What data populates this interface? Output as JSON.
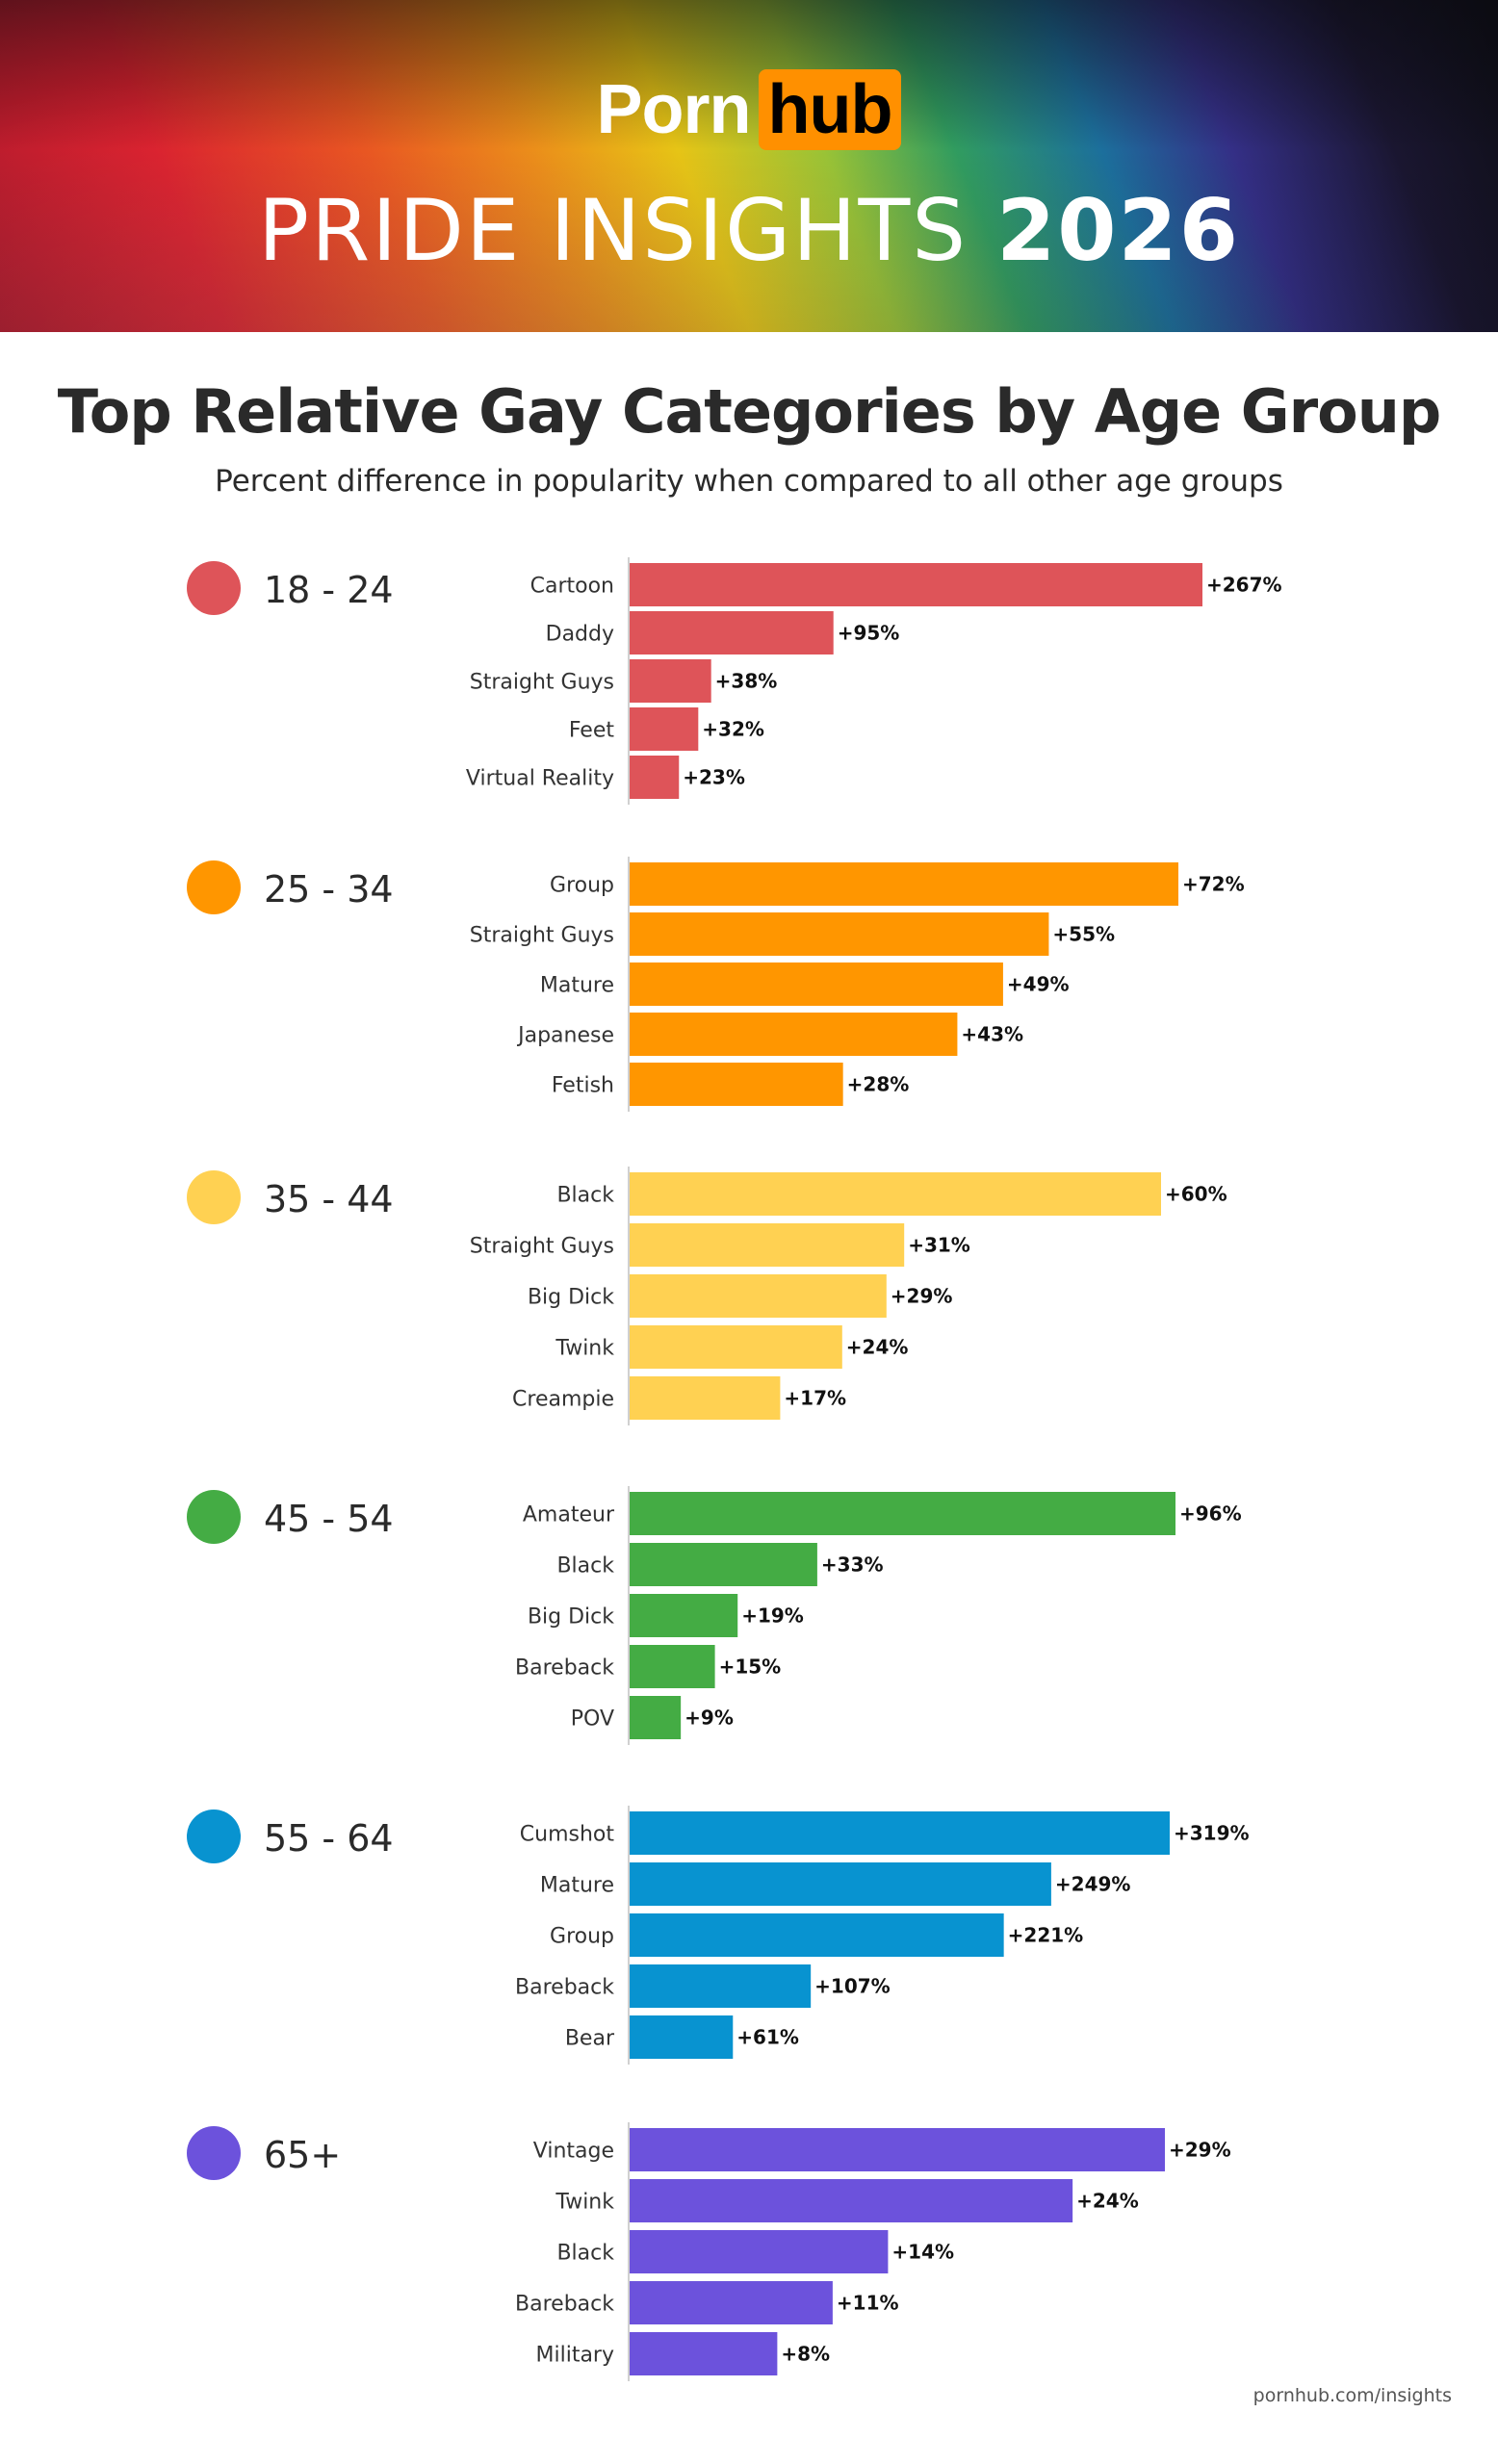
{
  "header": {
    "logo_text_1": "Porn",
    "logo_text_2": "hub",
    "title_main": "PRIDE INSIGHTS",
    "title_year": "2026"
  },
  "chart_data": {
    "type": "bar",
    "orientation": "horizontal",
    "title": "Top Relative Gay Categories by Age Group",
    "subtitle": "Percent difference in popularity when compared to all other age groups",
    "grid": false,
    "groups": [
      {
        "name": "18 - 24",
        "color": "#de5459",
        "max": 267,
        "categories": [
          "Cartoon",
          "Daddy",
          "Straight Guys",
          "Feet",
          "Virtual Reality"
        ],
        "values": [
          267,
          95,
          38,
          32,
          23
        ],
        "labels": [
          "+267%",
          "+95%",
          "+38%",
          "+32%",
          "+23%"
        ]
      },
      {
        "name": "25 - 34",
        "color": "#ff9600",
        "max": 72,
        "categories": [
          "Group",
          "Straight Guys",
          "Mature",
          "Japanese",
          "Fetish"
        ],
        "values": [
          72,
          55,
          49,
          43,
          28
        ],
        "labels": [
          "+72%",
          "+55%",
          "+49%",
          "+43%",
          "+28%"
        ]
      },
      {
        "name": "35 - 44",
        "color": "#ffd152",
        "max": 60,
        "categories": [
          "Black",
          "Straight Guys",
          "Big Dick",
          "Twink",
          "Creampie"
        ],
        "values": [
          60,
          31,
          29,
          24,
          17
        ],
        "labels": [
          "+60%",
          "+31%",
          "+29%",
          "+24%",
          "+17%"
        ]
      },
      {
        "name": "45 - 54",
        "color": "#44ac44",
        "max": 96,
        "categories": [
          "Amateur",
          "Black",
          "Big Dick",
          "Bareback",
          "POV"
        ],
        "values": [
          96,
          33,
          19,
          15,
          9
        ],
        "labels": [
          "+96%",
          "+33%",
          "+19%",
          "+15%",
          "+9%"
        ]
      },
      {
        "name": "55 - 64",
        "color": "#0893d0",
        "max": 319,
        "categories": [
          "Cumshot",
          "Mature",
          "Group",
          "Bareback",
          "Bear"
        ],
        "values": [
          319,
          249,
          221,
          107,
          61
        ],
        "labels": [
          "+319%",
          "+249%",
          "+221%",
          "+107%",
          "+61%"
        ]
      },
      {
        "name": "65+",
        "color": "#6c52dc",
        "max": 29,
        "categories": [
          "Vintage",
          "Twink",
          "Black",
          "Bareback",
          "Military"
        ],
        "values": [
          29,
          24,
          14,
          11,
          8
        ],
        "labels": [
          "+29%",
          "+24%",
          "+14%",
          "+11%",
          "+8%"
        ]
      }
    ]
  },
  "footer": {
    "source": "pornhub.com/insights"
  }
}
